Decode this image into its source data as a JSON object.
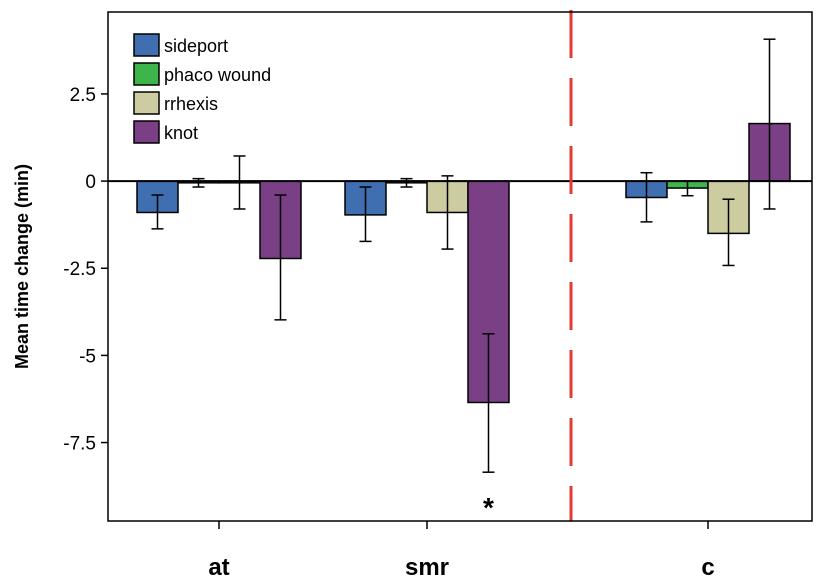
{
  "chart_data": {
    "type": "bar",
    "title": "",
    "ylabel": "Mean time change (min)",
    "xlabel": "",
    "ylim": [
      -9.75,
      4.85
    ],
    "yticks": [
      2.5,
      0,
      -2.5,
      -5,
      -7.5
    ],
    "ytick_labels": [
      "2.5",
      "0",
      "-2.5",
      "-5",
      "-7.5"
    ],
    "categories": [
      "at",
      "smr",
      "c"
    ],
    "series": [
      {
        "name": "sideport",
        "color": "#3F6FB0",
        "values": [
          -0.9,
          -0.97,
          -0.47
        ],
        "err_low": [
          -1.37,
          -1.73,
          -1.17
        ],
        "err_high": [
          -0.4,
          -0.17,
          0.24
        ]
      },
      {
        "name": "phaco wound",
        "color": "#3DB54A",
        "values": [
          -0.05,
          -0.05,
          -0.2
        ],
        "err_low": [
          -0.17,
          -0.17,
          -0.42
        ],
        "err_high": [
          0.07,
          0.07,
          0.0
        ]
      },
      {
        "name": "rrhexis",
        "color": "#CCCCA0",
        "values": [
          -0.05,
          -0.9,
          -1.5
        ],
        "err_low": [
          -0.8,
          -1.95,
          -2.42
        ],
        "err_high": [
          0.72,
          0.15,
          -0.52
        ]
      },
      {
        "name": "knot",
        "color": "#7B3F86",
        "values": [
          -2.22,
          -6.35,
          1.65
        ],
        "err_low": [
          -3.98,
          -8.35,
          -0.8
        ],
        "err_high": [
          -0.4,
          -4.38,
          4.07
        ]
      }
    ],
    "legend": {
      "position": "top-left",
      "items": [
        "sideport",
        "phaco wound",
        "rrhexis",
        "knot"
      ]
    },
    "annotations": [
      {
        "text": "*",
        "category": "smr",
        "series": "knot"
      }
    ],
    "divider": {
      "between": [
        "smr",
        "c"
      ],
      "style": "dashed",
      "color": "#E53935"
    },
    "grid": false
  }
}
